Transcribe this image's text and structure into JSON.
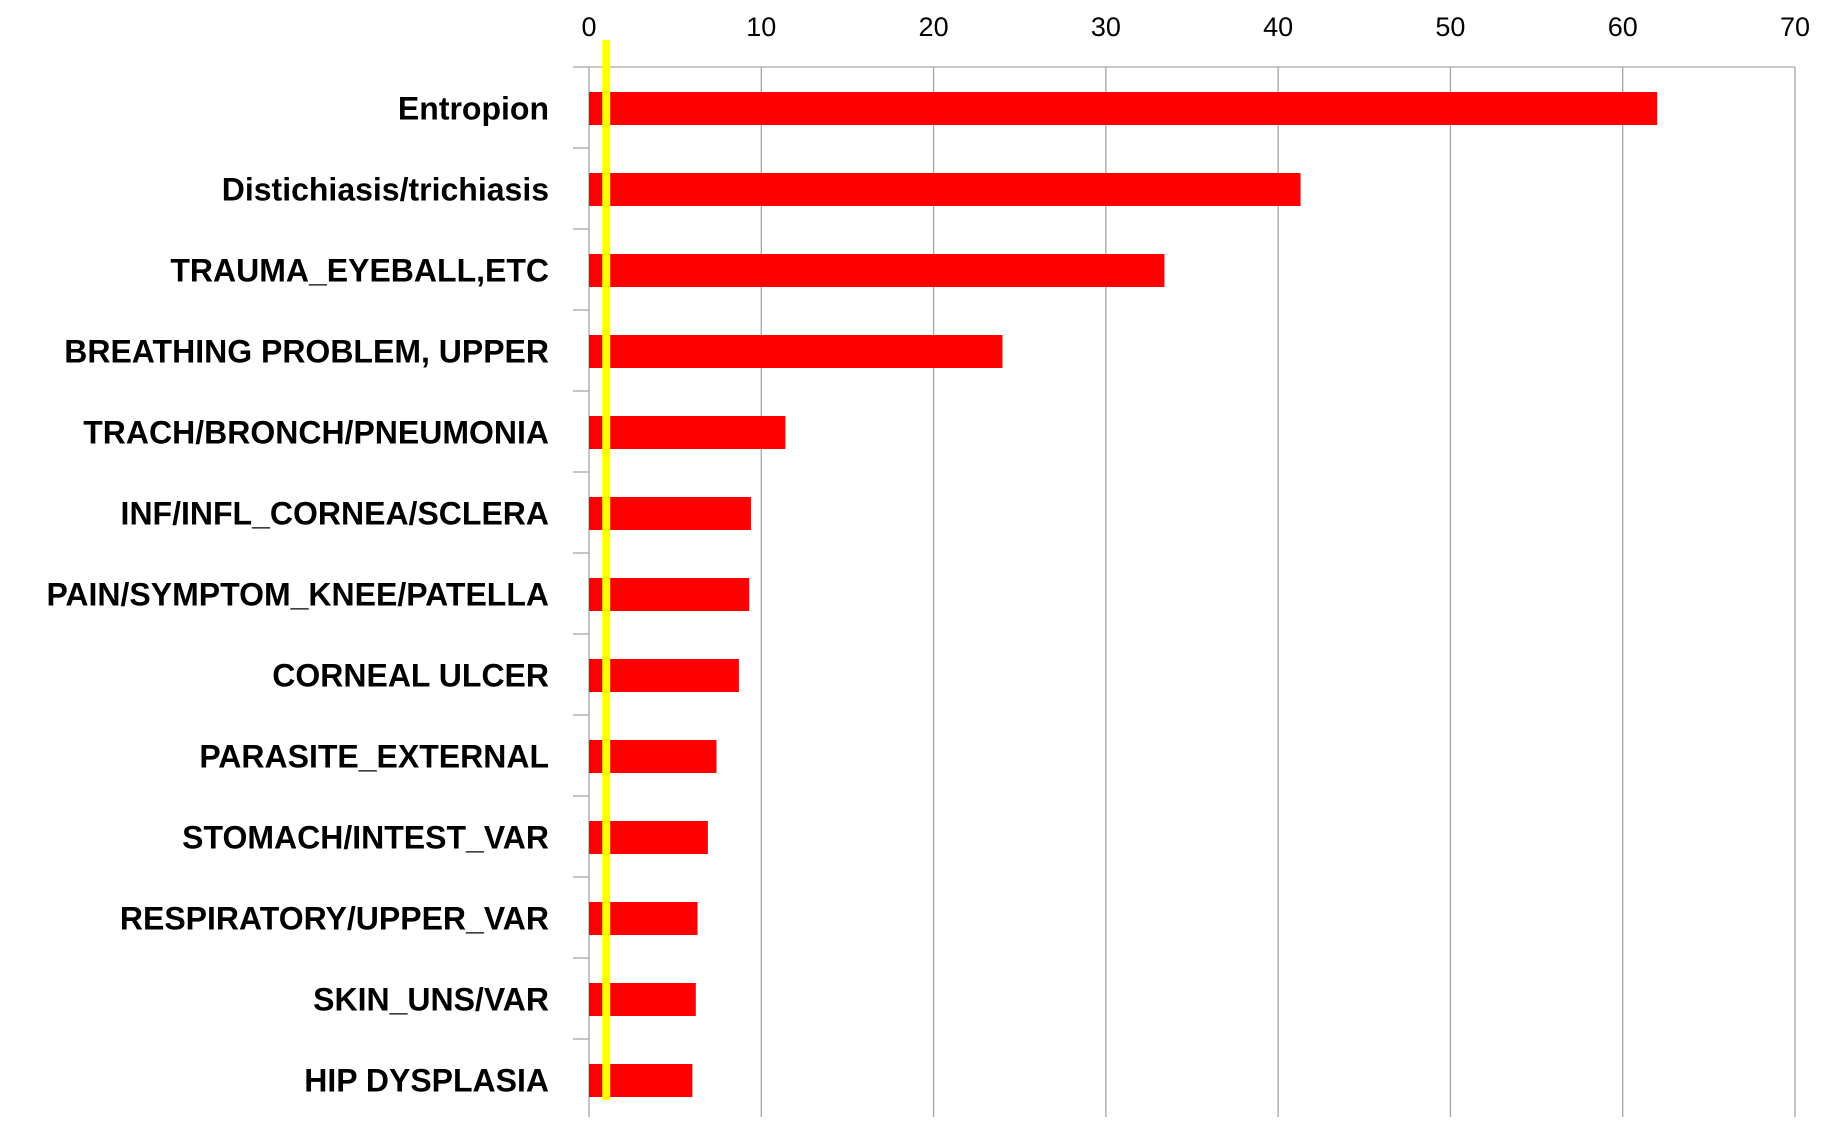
{
  "chart_data": {
    "type": "bar",
    "orientation": "horizontal",
    "x_axis_position": "top",
    "grid": true,
    "xlim": [
      0,
      70
    ],
    "x_ticks": [
      0,
      10,
      20,
      30,
      40,
      50,
      60,
      70
    ],
    "categories": [
      "Entropion",
      "Distichiasis/trichiasis",
      "TRAUMA_EYEBALL,ETC",
      "BREATHING PROBLEM, UPPER",
      "TRACH/BRONCH/PNEUMONIA",
      "INF/INFL_CORNEA/SCLERA",
      "PAIN/SYMPTOM_KNEE/PATELLA",
      "CORNEAL ULCER",
      "PARASITE_EXTERNAL",
      "STOMACH/INTEST_VAR",
      "RESPIRATORY/UPPER_VAR",
      "SKIN_UNS/VAR",
      "HIP DYSPLASIA"
    ],
    "values": [
      62,
      41.3,
      33.4,
      24,
      11.4,
      9.4,
      9.3,
      8.7,
      7.4,
      6.9,
      6.3,
      6.2,
      6.0
    ],
    "reference_line": {
      "value": 1
    },
    "colors": {
      "bar": "#ff0000",
      "reference_line": "#ffff00",
      "grid": "#a6a6a6"
    }
  }
}
